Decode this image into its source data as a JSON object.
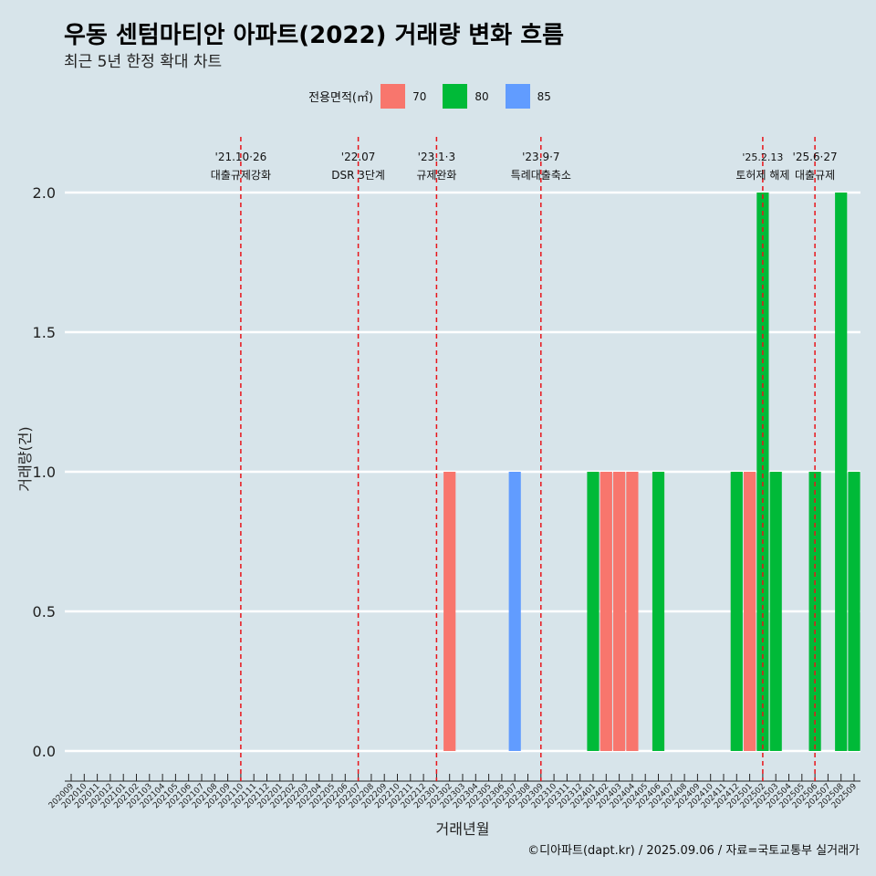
{
  "page": {
    "title": "우동 센텀마티안 아파트(2022) 거래량 변화 흐름",
    "subtitle": "최근 5년 한정 확대 차트",
    "caption": "©디아파트(dapt.kr) / 2025.09.06 / 자료=국토교통부 실거래가"
  },
  "legend": {
    "title": "전용면적(㎡)",
    "items": [
      {
        "label": "70",
        "color": "#F8766D"
      },
      {
        "label": "80",
        "color": "#00BA38"
      },
      {
        "label": "85",
        "color": "#619CFF"
      }
    ]
  },
  "chart_data": {
    "type": "bar",
    "title": "우동 센텀마티안 아파트(2022) 거래량 변화 흐름",
    "xlabel": "거래년월",
    "ylabel": "거래량(건)",
    "ylim": [
      0,
      2.0
    ],
    "yticks": [
      "0.0",
      "0.5",
      "1.0",
      "1.5",
      "2.0"
    ],
    "categories": [
      "202009",
      "202010",
      "202011",
      "202012",
      "202101",
      "202102",
      "202103",
      "202104",
      "202105",
      "202106",
      "202107",
      "202108",
      "202109",
      "202110",
      "202111",
      "202112",
      "202201",
      "202202",
      "202203",
      "202204",
      "202205",
      "202206",
      "202207",
      "202208",
      "202209",
      "202210",
      "202211",
      "202212",
      "202301",
      "202302",
      "202303",
      "202304",
      "202305",
      "202306",
      "202307",
      "202308",
      "202309",
      "202310",
      "202311",
      "202312",
      "202401",
      "202402",
      "202403",
      "202404",
      "202405",
      "202406",
      "202407",
      "202408",
      "202409",
      "202410",
      "202411",
      "202412",
      "202501",
      "202502",
      "202503",
      "202504",
      "202505",
      "202506",
      "202507",
      "202508",
      "202509"
    ],
    "series": [
      {
        "name": "70",
        "color": "#F8766D",
        "points": [
          {
            "x": "202302",
            "y": 1
          },
          {
            "x": "202402",
            "y": 1
          },
          {
            "x": "202403",
            "y": 1
          },
          {
            "x": "202404",
            "y": 1
          },
          {
            "x": "202501",
            "y": 1
          }
        ]
      },
      {
        "name": "80",
        "color": "#00BA38",
        "points": [
          {
            "x": "202401",
            "y": 1
          },
          {
            "x": "202406",
            "y": 1
          },
          {
            "x": "202412",
            "y": 1
          },
          {
            "x": "202502",
            "y": 2
          },
          {
            "x": "202503",
            "y": 1
          },
          {
            "x": "202506",
            "y": 1
          },
          {
            "x": "202508",
            "y": 2
          },
          {
            "x": "202509",
            "y": 1
          }
        ]
      },
      {
        "name": "85",
        "color": "#619CFF",
        "points": [
          {
            "x": "202307",
            "y": 1
          }
        ]
      }
    ],
    "events": [
      {
        "x": "202110",
        "date": "'21.10·26",
        "label": "대출규제강화"
      },
      {
        "x": "202207",
        "date": "'22.07",
        "label": "DSR 3단계"
      },
      {
        "x": "202301",
        "date": "'23.1·3",
        "label": "규제완화"
      },
      {
        "x": "202309",
        "date": "'23.9·7",
        "label": "특례대출축소"
      },
      {
        "x": "202502",
        "date": "'25.2.13",
        "label": "토허제 해제"
      },
      {
        "x": "202506",
        "date": "'25.6·27",
        "label": "대출규제"
      }
    ],
    "grid": true,
    "legend_position": "top"
  }
}
